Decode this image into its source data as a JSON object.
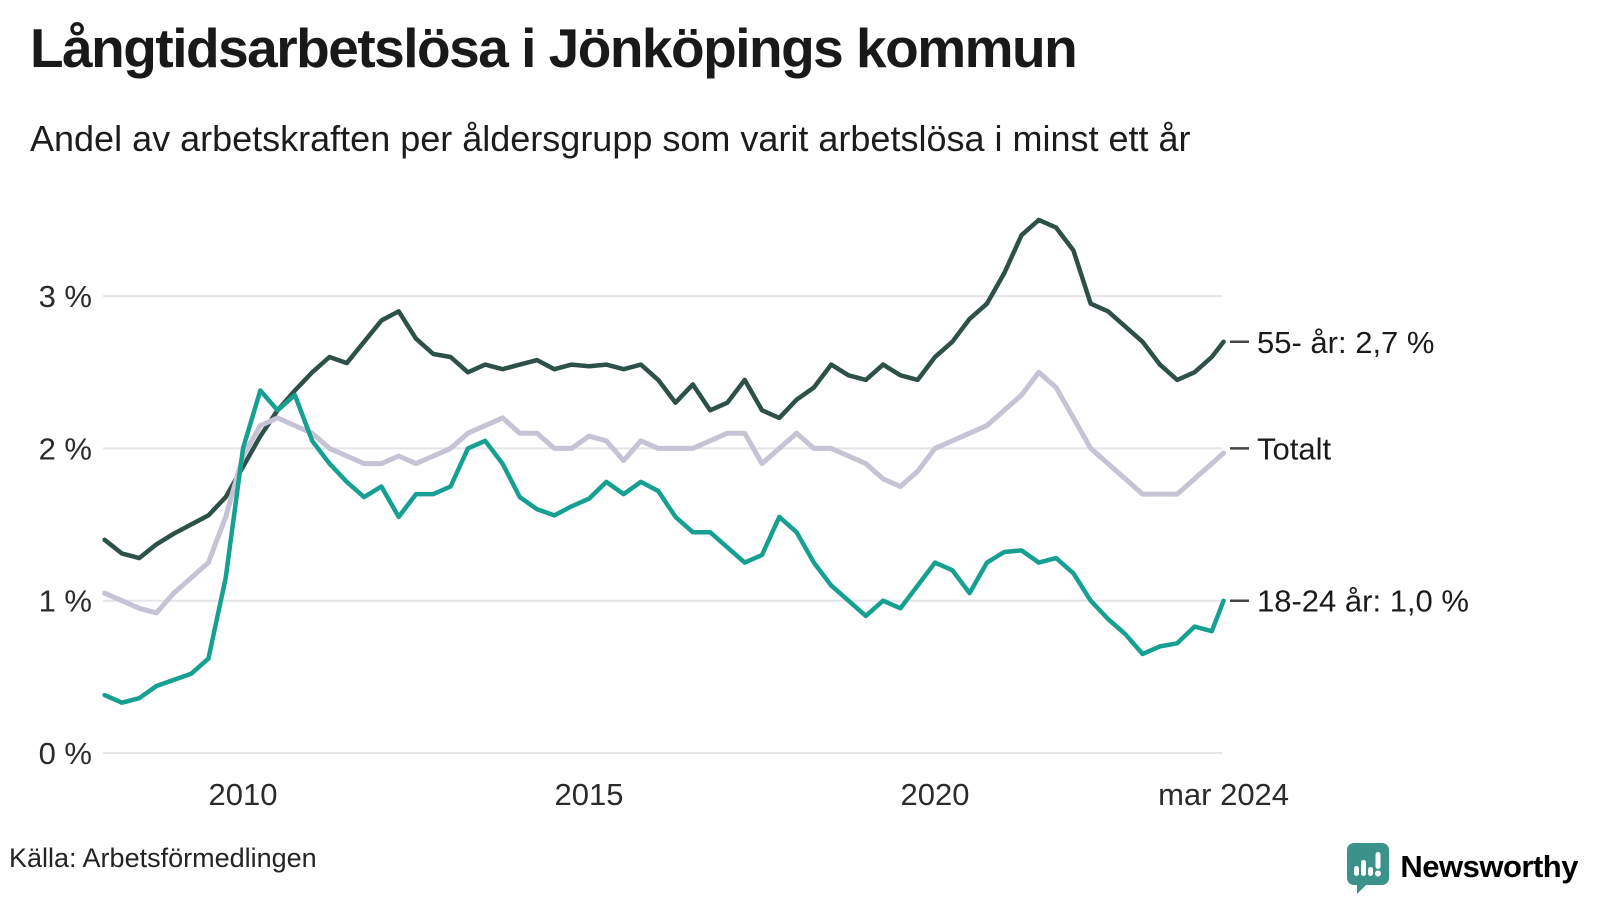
{
  "header": {
    "title": "Långtidsarbetslösa i Jönköpings kommun",
    "subtitle": "Andel av arbetskraften per åldersgrupp som varit arbetslösa i minst ett år"
  },
  "footer": {
    "source": "Källa: Arbetsförmedlingen",
    "brand": "Newsworthy"
  },
  "colors": {
    "series_55": "#2d5048",
    "series_total": "#c6c3d4",
    "series_1824": "#16a091",
    "grid": "#e4e4e9",
    "tick_dash": "#454545",
    "axis_text": "#2b2b2b",
    "label_text": "#1b1b1b",
    "brand_teal": "#338d87"
  },
  "chart_data": {
    "type": "line",
    "title": "Långtidsarbetslösa i Jönköpings kommun",
    "subtitle": "Andel av arbetskraften per åldersgrupp som varit arbetslösa i minst ett år",
    "unit": "%",
    "grid": "horizontal",
    "legend_position": "right-end-labels",
    "ylim": [
      0,
      3.6
    ],
    "yticks": [
      {
        "value": 3,
        "label": "3 %"
      },
      {
        "value": 2,
        "label": "2 %"
      },
      {
        "value": 1,
        "label": "1 %"
      },
      {
        "value": 0,
        "label": "0 %"
      }
    ],
    "xticks": [
      {
        "value": 2010,
        "label": "2010"
      },
      {
        "value": 2015,
        "label": "2015"
      },
      {
        "value": 2020,
        "label": "2020"
      },
      {
        "value": 2024.17,
        "label": "mar 2024"
      }
    ],
    "x": [
      2008,
      2008.25,
      2008.5,
      2008.75,
      2009,
      2009.25,
      2009.5,
      2009.75,
      2010,
      2010.25,
      2010.5,
      2010.75,
      2011,
      2011.25,
      2011.5,
      2011.75,
      2012,
      2012.25,
      2012.5,
      2012.75,
      2013,
      2013.25,
      2013.5,
      2013.75,
      2014,
      2014.25,
      2014.5,
      2014.75,
      2015,
      2015.25,
      2015.5,
      2015.75,
      2016,
      2016.25,
      2016.5,
      2016.75,
      2017,
      2017.25,
      2017.5,
      2017.75,
      2018,
      2018.25,
      2018.5,
      2018.75,
      2019,
      2019.25,
      2019.5,
      2019.75,
      2020,
      2020.25,
      2020.5,
      2020.75,
      2021,
      2021.25,
      2021.5,
      2021.75,
      2022,
      2022.25,
      2022.5,
      2022.75,
      2023,
      2023.25,
      2023.5,
      2023.75,
      2024,
      2024.17
    ],
    "series": [
      {
        "name": "55- år",
        "end_label": "55- år: 2,7 %",
        "final_value": 2.7,
        "color_key": "series_55",
        "stroke_width": 4.5,
        "values": [
          1.4,
          1.31,
          1.28,
          1.37,
          1.44,
          1.5,
          1.56,
          1.68,
          1.88,
          2.08,
          2.25,
          2.38,
          2.5,
          2.6,
          2.56,
          2.7,
          2.84,
          2.9,
          2.72,
          2.62,
          2.6,
          2.5,
          2.55,
          2.52,
          2.55,
          2.58,
          2.52,
          2.55,
          2.54,
          2.55,
          2.52,
          2.55,
          2.45,
          2.3,
          2.42,
          2.25,
          2.3,
          2.45,
          2.25,
          2.2,
          2.32,
          2.4,
          2.55,
          2.48,
          2.45,
          2.55,
          2.48,
          2.45,
          2.6,
          2.7,
          2.85,
          2.95,
          3.15,
          3.4,
          3.5,
          3.45,
          3.3,
          2.95,
          2.9,
          2.8,
          2.7,
          2.55,
          2.45,
          2.5,
          2.6,
          2.7
        ]
      },
      {
        "name": "Totalt",
        "end_label": "Totalt",
        "final_value": 2.0,
        "color_key": "series_total",
        "stroke_width": 5,
        "values": [
          1.05,
          1.0,
          0.95,
          0.92,
          1.05,
          1.15,
          1.25,
          1.55,
          1.95,
          2.15,
          2.2,
          2.15,
          2.1,
          2.0,
          1.95,
          1.9,
          1.9,
          1.95,
          1.9,
          1.95,
          2.0,
          2.1,
          2.15,
          2.2,
          2.1,
          2.1,
          2.0,
          2.0,
          2.08,
          2.05,
          1.92,
          2.05,
          2.0,
          2.0,
          2.0,
          2.05,
          2.1,
          2.1,
          1.9,
          2.0,
          2.1,
          2.0,
          2.0,
          1.95,
          1.9,
          1.8,
          1.75,
          1.85,
          2.0,
          2.05,
          2.1,
          2.15,
          2.25,
          2.35,
          2.5,
          2.4,
          2.2,
          2.0,
          1.9,
          1.8,
          1.7,
          1.7,
          1.7,
          1.8,
          1.9,
          1.97
        ]
      },
      {
        "name": "18-24 år",
        "end_label": "18-24 år: 1,0 %",
        "final_value": 1.0,
        "color_key": "series_1824",
        "stroke_width": 4.5,
        "values": [
          0.38,
          0.33,
          0.36,
          0.44,
          0.48,
          0.52,
          0.62,
          1.15,
          2.0,
          2.38,
          2.25,
          2.35,
          2.05,
          1.9,
          1.78,
          1.68,
          1.75,
          1.55,
          1.7,
          1.7,
          1.75,
          2.0,
          2.05,
          1.9,
          1.68,
          1.6,
          1.56,
          1.62,
          1.67,
          1.78,
          1.7,
          1.78,
          1.72,
          1.55,
          1.45,
          1.45,
          1.35,
          1.25,
          1.3,
          1.55,
          1.45,
          1.25,
          1.1,
          1.0,
          0.9,
          1.0,
          0.95,
          1.1,
          1.25,
          1.2,
          1.05,
          1.25,
          1.32,
          1.33,
          1.25,
          1.28,
          1.18,
          1.0,
          0.88,
          0.78,
          0.65,
          0.7,
          0.72,
          0.83,
          0.8,
          1.0
        ]
      }
    ]
  }
}
